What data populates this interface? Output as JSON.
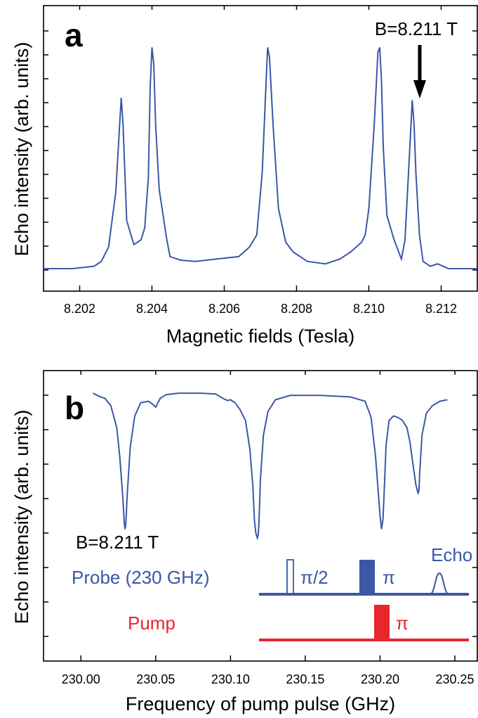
{
  "chart_data": [
    {
      "type": "line",
      "panel_label": "a",
      "xlabel": "Magnetic fields (Tesla)",
      "ylabel": "Echo intensity (arb. units)",
      "xlim": [
        8.201,
        8.213
      ],
      "ylim": [
        0,
        1.0
      ],
      "xticks": [
        "8.202",
        "8.204",
        "8.206",
        "8.208",
        "8.210",
        "8.212"
      ],
      "series_color": "#3b57a6",
      "annotation": {
        "text": "B=8.211 T",
        "x": 8.2113
      },
      "x": [
        8.201,
        8.2018,
        8.2024,
        8.2026,
        8.2028,
        8.203,
        8.2031,
        8.20315,
        8.2032,
        8.2033,
        8.2035,
        8.2037,
        8.2038,
        8.2039,
        8.20395,
        8.204,
        8.20405,
        8.2041,
        8.2042,
        8.2044,
        8.2045,
        8.2048,
        8.2052,
        8.2058,
        8.2064,
        8.2067,
        8.2069,
        8.20705,
        8.20715,
        8.2072,
        8.20725,
        8.20735,
        8.2075,
        8.2077,
        8.2079,
        8.2083,
        8.2088,
        8.2092,
        8.2095,
        8.2098,
        8.2099,
        8.21,
        8.21015,
        8.21025,
        8.2103,
        8.21035,
        8.2104,
        8.2105,
        8.2107,
        8.2109,
        8.211,
        8.21115,
        8.2112,
        8.21125,
        8.2113,
        8.2114,
        8.2115,
        8.2117,
        8.2119,
        8.2122,
        8.2126,
        8.213
      ],
      "y": [
        0.0,
        0.0,
        0.01,
        0.03,
        0.09,
        0.32,
        0.58,
        0.71,
        0.6,
        0.2,
        0.1,
        0.12,
        0.17,
        0.38,
        0.75,
        0.92,
        0.85,
        0.6,
        0.33,
        0.13,
        0.05,
        0.035,
        0.03,
        0.04,
        0.05,
        0.09,
        0.14,
        0.4,
        0.75,
        0.92,
        0.88,
        0.6,
        0.25,
        0.11,
        0.07,
        0.03,
        0.02,
        0.04,
        0.07,
        0.11,
        0.14,
        0.25,
        0.6,
        0.9,
        0.92,
        0.78,
        0.5,
        0.22,
        0.12,
        0.04,
        0.12,
        0.55,
        0.7,
        0.6,
        0.4,
        0.14,
        0.03,
        0.01,
        0.02,
        0.0,
        0.0,
        0.0
      ]
    },
    {
      "type": "line",
      "panel_label": "b",
      "xlabel": "Frequency of pump pulse (GHz)",
      "ylabel": "Echo intensity (arb. units)",
      "xlim": [
        229.975,
        230.265
      ],
      "ylim": [
        0,
        1.0
      ],
      "xticks": [
        "230.00",
        "230.05",
        "230.10",
        "230.15",
        "230.20",
        "230.25"
      ],
      "series_color": "#3b57a6",
      "x": [
        230.008,
        230.012,
        230.016,
        230.02,
        230.024,
        230.026,
        230.028,
        230.029,
        230.0295,
        230.03,
        230.031,
        230.033,
        230.036,
        230.04,
        230.045,
        230.048,
        230.05,
        230.053,
        230.057,
        230.065,
        230.08,
        230.09,
        230.095,
        230.098,
        230.1,
        230.103,
        230.106,
        230.11,
        230.113,
        230.115,
        230.116,
        230.117,
        230.118,
        230.1185,
        230.119,
        230.12,
        230.122,
        230.125,
        230.13,
        230.14,
        230.16,
        230.18,
        230.19,
        230.194,
        230.197,
        230.2,
        230.201,
        230.202,
        230.203,
        230.204,
        230.206,
        230.209,
        230.212,
        230.215,
        230.218,
        230.22,
        230.222,
        230.224,
        230.2255,
        230.226,
        230.2265,
        230.228,
        230.231,
        230.235,
        230.24,
        230.245
      ],
      "y": [
        0.985,
        0.965,
        0.95,
        0.9,
        0.75,
        0.55,
        0.28,
        0.1,
        0.06,
        0.09,
        0.3,
        0.62,
        0.83,
        0.92,
        0.93,
        0.91,
        0.89,
        0.95,
        0.975,
        0.985,
        0.985,
        0.98,
        0.95,
        0.935,
        0.94,
        0.92,
        0.88,
        0.8,
        0.6,
        0.35,
        0.12,
        0.03,
        0.0,
        0.02,
        0.1,
        0.4,
        0.7,
        0.86,
        0.94,
        0.97,
        0.97,
        0.96,
        0.93,
        0.82,
        0.55,
        0.15,
        0.06,
        0.13,
        0.38,
        0.63,
        0.8,
        0.83,
        0.82,
        0.8,
        0.75,
        0.65,
        0.5,
        0.36,
        0.3,
        0.33,
        0.45,
        0.7,
        0.85,
        0.9,
        0.93,
        0.94
      ]
    }
  ],
  "annotations": {
    "b_field": "B=8.211 T",
    "probe_label": "Probe (230 GHz)",
    "pump_label": "Pump",
    "pi_half": "π/2",
    "pi_probe": "π",
    "echo": "Echo",
    "pi_pump": "π",
    "probe_color": "#3b57a6",
    "pump_color": "#e8262c"
  }
}
